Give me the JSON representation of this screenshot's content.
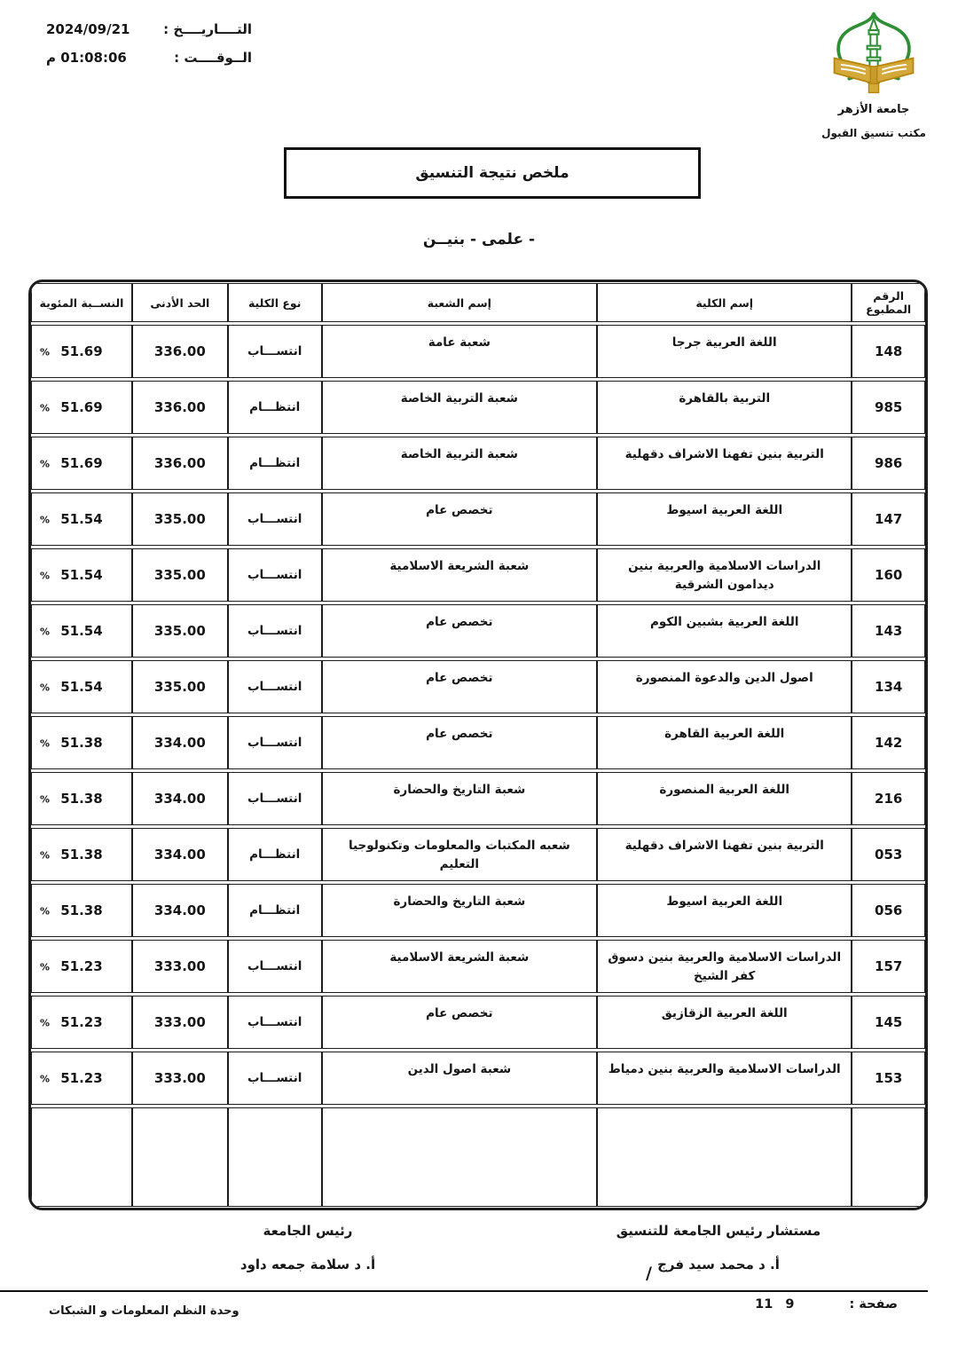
{
  "meta": {
    "date_label": "التــــاريــــخ :",
    "date_value": "2024/09/21",
    "time_label": "الــوقــــت :",
    "time_value": "01:08:06 م"
  },
  "logo": {
    "org_name": "جامعة الأزهر",
    "office": "مكتب تنسيق القبول",
    "green": "#2f8f35",
    "gold": "#d4a93c",
    "gold_dark": "#b8860b"
  },
  "title": "ملخص نتيجة التنسيق",
  "subtitle": "- علمى - بنيــن",
  "table": {
    "headers": [
      "الرقم المطبوع",
      "إسم الكلية",
      "إسم الشعبة",
      "نوع الكلية",
      "الحد الأدنى",
      "النســبة المئوية"
    ],
    "percent_sign": "%",
    "rows": [
      {
        "code": "148",
        "college": "اللغة العربية جرجا",
        "branch": "شعبة عامة",
        "type": "انتســـاب",
        "min": "336.00",
        "pct": "51.69"
      },
      {
        "code": "985",
        "college": "التربية  بالقاهرة",
        "branch": "شعبة التربية الخاصة",
        "type": "انتظـــام",
        "min": "336.00",
        "pct": "51.69"
      },
      {
        "code": "986",
        "college": "التربية بنين تفهنا الاشراف دقهلية",
        "branch": "شعبة التربية الخاصة",
        "type": "انتظـــام",
        "min": "336.00",
        "pct": "51.69"
      },
      {
        "code": "147",
        "college": "اللغة العربية اسيوط",
        "branch": "تخصص عام",
        "type": "انتســـاب",
        "min": "335.00",
        "pct": "51.54"
      },
      {
        "code": "160",
        "college": "الدراسات الاسلامية والعربية بنين ديدامون الشرقية",
        "branch": "شعبة الشريعة الاسلامية",
        "type": "انتســـاب",
        "min": "335.00",
        "pct": "51.54"
      },
      {
        "code": "143",
        "college": "اللغة العربية بشبين الكوم",
        "branch": "تخصص عام",
        "type": "انتســـاب",
        "min": "335.00",
        "pct": "51.54"
      },
      {
        "code": "134",
        "college": "اصول الدين والدعوة المنصورة",
        "branch": "تخصص عام",
        "type": "انتســـاب",
        "min": "335.00",
        "pct": "51.54"
      },
      {
        "code": "142",
        "college": "اللغة العربية القاهرة",
        "branch": "تخصص عام",
        "type": "انتســـاب",
        "min": "334.00",
        "pct": "51.38"
      },
      {
        "code": "216",
        "college": "اللغة العربية المنصورة",
        "branch": "شعبة التاريخ والحضارة",
        "type": "انتســـاب",
        "min": "334.00",
        "pct": "51.38"
      },
      {
        "code": "053",
        "college": "التربية بنين تفهنا الاشراف دقهلية",
        "branch": "شعبه المكتبات والمعلومات وتكنولوجيا التعليم",
        "type": "انتظـــام",
        "min": "334.00",
        "pct": "51.38"
      },
      {
        "code": "056",
        "college": "اللغة العربية اسيوط",
        "branch": "شعبة التاريخ والحضارة",
        "type": "انتظـــام",
        "min": "334.00",
        "pct": "51.38"
      },
      {
        "code": "157",
        "college": "الدراسات الاسلامية والعربية بنين دسوق كفر الشيخ",
        "branch": "شعبة الشريعة الاسلامية",
        "type": "انتســـاب",
        "min": "333.00",
        "pct": "51.23"
      },
      {
        "code": "145",
        "college": "اللغة العربية الزقازيق",
        "branch": "تخصص عام",
        "type": "انتســـاب",
        "min": "333.00",
        "pct": "51.23"
      },
      {
        "code": "153",
        "college": "الدراسات الاسلامية والعربية بنين دمياط",
        "branch": "شعبة اصول الدين",
        "type": "انتســـاب",
        "min": "333.00",
        "pct": "51.23"
      }
    ]
  },
  "signatures": {
    "right_title": "مستشار رئيس الجامعة للتنسيق",
    "right_name": "أ. د محمد سيد فرج",
    "left_title": "رئيس الجامعة",
    "left_name": "أ. د سلامة جمعه داود"
  },
  "footer": {
    "slash": "/",
    "page_label": "صفحة :",
    "page_current": "9",
    "page_total": "11",
    "unit": "وحدة النظم المعلومات و الشبكات"
  }
}
